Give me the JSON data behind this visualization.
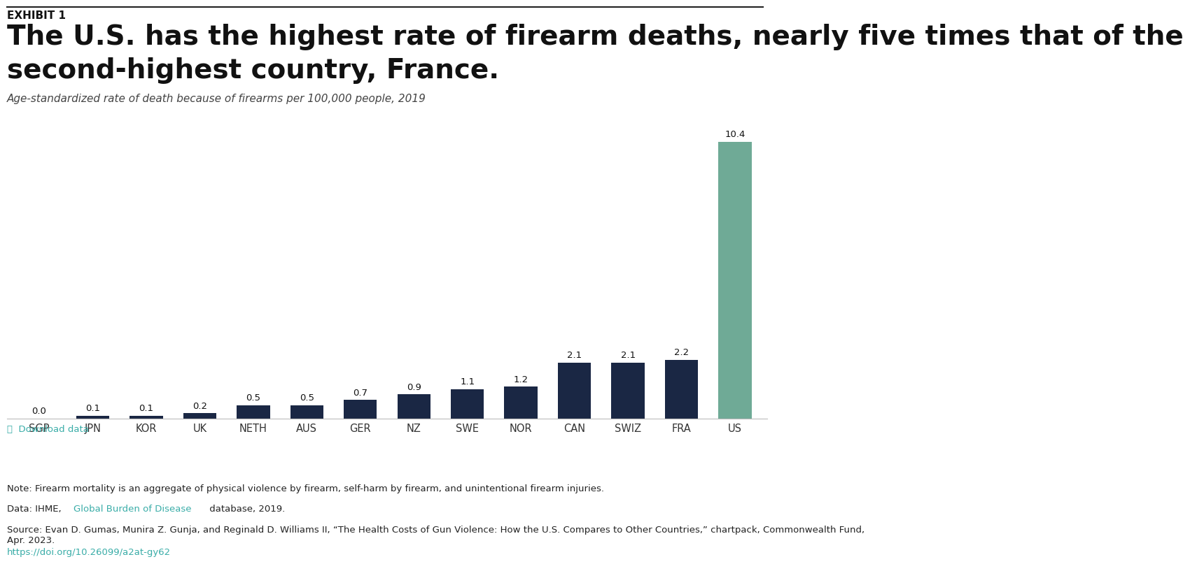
{
  "categories": [
    "SGP",
    "JPN",
    "KOR",
    "UK",
    "NETH",
    "AUS",
    "GER",
    "NZ",
    "SWE",
    "NOR",
    "CAN",
    "SWIZ",
    "FRA",
    "US"
  ],
  "values": [
    0.0,
    0.1,
    0.1,
    0.2,
    0.5,
    0.5,
    0.7,
    0.9,
    1.1,
    1.2,
    2.1,
    2.1,
    2.2,
    10.4
  ],
  "bar_colors": [
    "#1a2744",
    "#1a2744",
    "#1a2744",
    "#1a2744",
    "#1a2744",
    "#1a2744",
    "#1a2744",
    "#1a2744",
    "#1a2744",
    "#1a2744",
    "#1a2744",
    "#1a2744",
    "#1a2744",
    "#6faa96"
  ],
  "exhibit_label": "EXHIBIT 1",
  "title_line1": "The U.S. has the highest rate of firearm deaths, nearly five times that of the",
  "title_line2": "second-highest country, France.",
  "subtitle": "Age-standardized rate of death because of firearms per 100,000 people, 2019",
  "download_label": "⤓  Download data",
  "note_text": "Note: Firearm mortality is an aggregate of physical violence by firearm, self-harm by firearm, and unintentional firearm injuries.",
  "data_text1": "Data: IHME, ",
  "data_link": "Global Burden of Disease",
  "data_text2": " database, 2019.",
  "source_text": "Source: Evan D. Gumas, Munira Z. Gunja, and Reginald D. Williams II, “The Health Costs of Gun Violence: How the U.S. Compares to Other Countries,” chartpack, Commonwealth Fund,\nApr. 2023. ",
  "source_link": "https://doi.org/10.26099/a2at-gy62",
  "link_color": "#3aada8",
  "background_color": "#ffffff",
  "title_color": "#111111",
  "axis_color": "#333333",
  "ylim": [
    0,
    11.5
  ],
  "bar_label_fontsize": 9.5,
  "subtitle_fontsize": 11,
  "title_fontsize": 28,
  "note_fontsize": 9.5,
  "exhibit_fontsize": 11
}
